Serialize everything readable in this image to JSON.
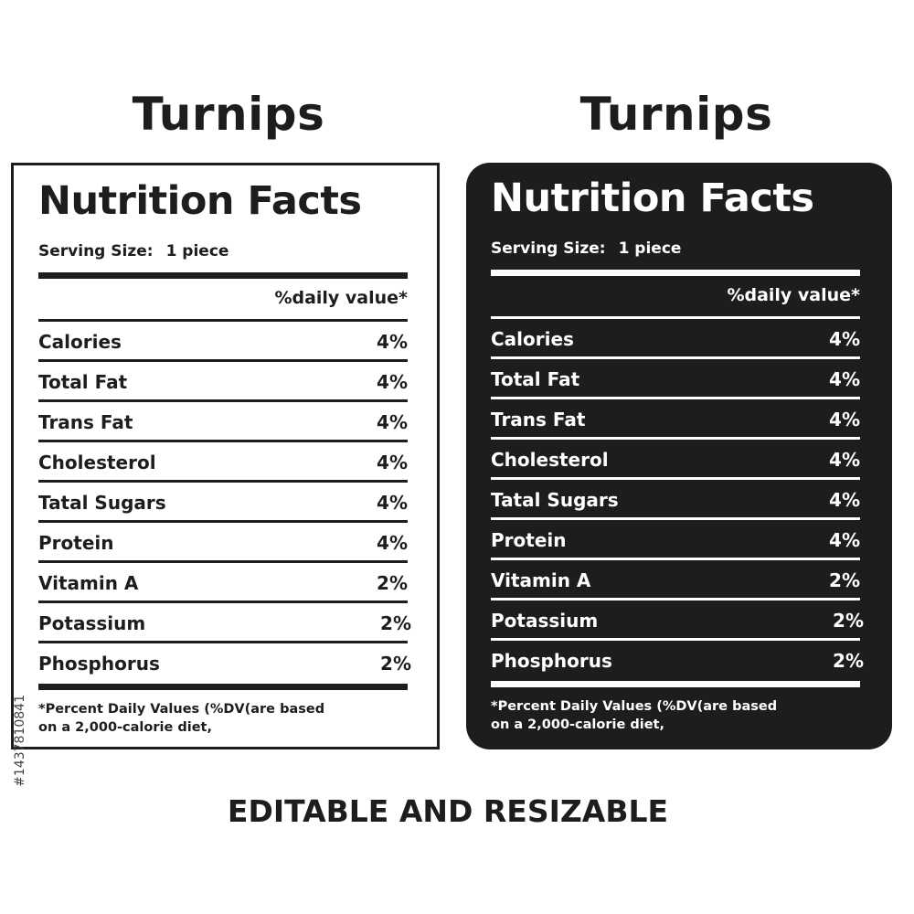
{
  "labels": [
    {
      "style": "light",
      "product_title": "Turnips",
      "heading": "Nutrition Facts",
      "serving_label": "Serving Size:",
      "serving_value": "1 piece",
      "dv_header": "%daily value*",
      "rows": [
        {
          "name": "Calories",
          "value": "4%"
        },
        {
          "name": "Total Fat",
          "value": "4%"
        },
        {
          "name": "Trans Fat",
          "value": "4%"
        },
        {
          "name": "Cholesterol",
          "value": "4%"
        },
        {
          "name": "Tatal Sugars",
          "value": "4%"
        },
        {
          "name": "Protein",
          "value": "4%"
        },
        {
          "name": "Vitamin A",
          "value": "2%"
        },
        {
          "name": "Potassium",
          "value": "2%"
        },
        {
          "name": "Phosphorus",
          "value": "2%"
        }
      ],
      "footnote_line1": "*Percent Daily Values (%DV(are  based",
      "footnote_line2": "on a 2,000-calorie diet,"
    },
    {
      "style": "dark",
      "product_title": "Turnips",
      "heading": "Nutrition Facts",
      "serving_label": "Serving Size:",
      "serving_value": "1 piece",
      "dv_header": "%daily value*",
      "rows": [
        {
          "name": "Calories",
          "value": "4%"
        },
        {
          "name": "Total Fat",
          "value": "4%"
        },
        {
          "name": "Trans Fat",
          "value": "4%"
        },
        {
          "name": "Cholesterol",
          "value": "4%"
        },
        {
          "name": "Tatal Sugars",
          "value": "4%"
        },
        {
          "name": "Protein",
          "value": "4%"
        },
        {
          "name": "Vitamin A",
          "value": "2%"
        },
        {
          "name": "Potassium",
          "value": "2%"
        },
        {
          "name": "Phosphorus",
          "value": "2%"
        }
      ],
      "footnote_line1": "*Percent Daily Values (%DV(are  based",
      "footnote_line2": "on a 2,000-calorie diet,"
    }
  ],
  "bottom_caption": "EDITABLE AND RESIZABLE",
  "stock_id": "#1437810841",
  "colors": {
    "ink": "#1d1d1b",
    "paper": "#ffffff"
  }
}
